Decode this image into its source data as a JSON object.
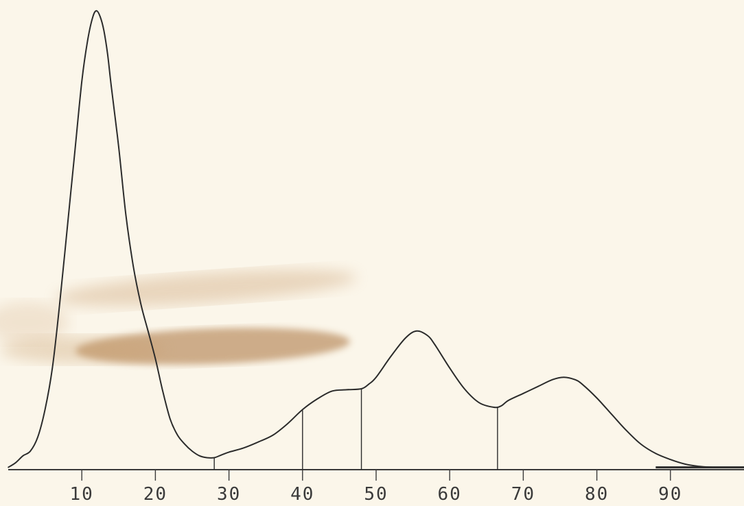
{
  "chart_data": {
    "type": "line",
    "title": "",
    "xlabel": "",
    "ylabel": "",
    "xlim": [
      0,
      100
    ],
    "ylim": [
      0,
      100
    ],
    "grid": false,
    "legend": "none",
    "x_ticks": [
      {
        "value": 10,
        "label": "10"
      },
      {
        "value": 20,
        "label": "20"
      },
      {
        "value": 30,
        "label": "30"
      },
      {
        "value": 40,
        "label": "40"
      },
      {
        "value": 50,
        "label": "50"
      },
      {
        "value": 60,
        "label": "60"
      },
      {
        "value": 70,
        "label": "70"
      },
      {
        "value": 80,
        "label": "80"
      },
      {
        "value": 90,
        "label": "90"
      }
    ],
    "series": [
      {
        "points": [
          [
            0,
            0.5
          ],
          [
            1,
            1.5
          ],
          [
            2,
            3
          ],
          [
            3,
            4
          ],
          [
            4,
            7
          ],
          [
            5,
            13
          ],
          [
            6,
            22
          ],
          [
            7,
            36
          ],
          [
            8,
            52
          ],
          [
            9,
            68
          ],
          [
            10,
            84
          ],
          [
            10.8,
            93
          ],
          [
            11.5,
            98
          ],
          [
            12,
            99.3
          ],
          [
            12.5,
            98
          ],
          [
            13,
            95
          ],
          [
            13.5,
            90
          ],
          [
            14,
            83
          ],
          [
            15,
            70
          ],
          [
            16,
            55
          ],
          [
            17,
            44
          ],
          [
            18,
            36
          ],
          [
            19,
            30
          ],
          [
            20,
            24
          ],
          [
            21,
            17
          ],
          [
            22,
            11
          ],
          [
            23,
            7.5
          ],
          [
            24,
            5.5
          ],
          [
            25,
            4
          ],
          [
            26,
            3
          ],
          [
            27,
            2.6
          ],
          [
            28,
            2.6
          ],
          [
            29,
            3.2
          ],
          [
            30,
            3.8
          ],
          [
            32,
            4.7
          ],
          [
            34,
            6
          ],
          [
            36,
            7.5
          ],
          [
            38,
            10
          ],
          [
            40,
            13
          ],
          [
            42,
            15.3
          ],
          [
            44,
            17
          ],
          [
            46,
            17.3
          ],
          [
            48,
            17.5
          ],
          [
            49,
            18.5
          ],
          [
            50,
            20
          ],
          [
            52,
            24.5
          ],
          [
            54,
            28.5
          ],
          [
            55.5,
            30
          ],
          [
            57,
            29
          ],
          [
            58,
            27
          ],
          [
            60,
            22
          ],
          [
            62,
            17.5
          ],
          [
            64,
            14.5
          ],
          [
            66,
            13.5
          ],
          [
            67,
            13.8
          ],
          [
            68,
            15
          ],
          [
            70,
            16.5
          ],
          [
            72,
            18
          ],
          [
            74,
            19.5
          ],
          [
            75.5,
            20
          ],
          [
            77,
            19.5
          ],
          [
            78,
            18.5
          ],
          [
            80,
            15.5
          ],
          [
            82,
            12
          ],
          [
            84,
            8.5
          ],
          [
            86,
            5.5
          ],
          [
            88,
            3.5
          ],
          [
            90,
            2.2
          ],
          [
            92,
            1.2
          ],
          [
            94,
            0.7
          ],
          [
            96,
            0.5
          ],
          [
            100,
            0.5
          ]
        ]
      }
    ],
    "dividers": [
      28,
      40,
      48,
      66.5
    ],
    "colors": {
      "line": "#2b2b2b",
      "axis": "#3a3a3a",
      "paper": "#fbf6ea",
      "stain": "#b8864a"
    }
  }
}
